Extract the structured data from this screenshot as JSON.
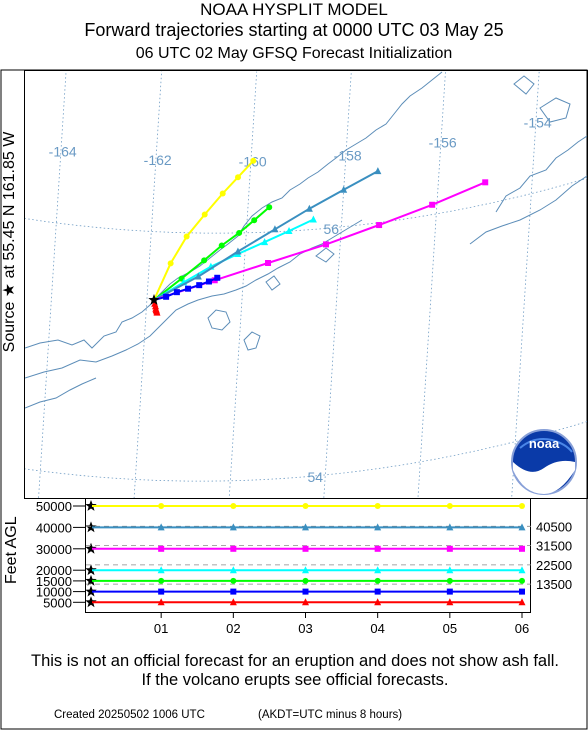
{
  "header": {
    "title_line1": "NOAA HYSPLIT MODEL",
    "title_line2": "Forward trajectories starting at 0000 UTC 03 May 25",
    "title_line3": "06 UTC 02 May    GFSQ  Forecast Initialization"
  },
  "map": {
    "source_label": "Source ★ at   55.45 N  161.85 W",
    "source": {
      "lat": 55.45,
      "lon": -161.85
    },
    "lon_labels": [
      {
        "text": "-164",
        "lon": -164
      },
      {
        "text": "-162",
        "lon": -162
      },
      {
        "text": "-160",
        "lon": -160
      },
      {
        "text": "-158",
        "lon": -158
      },
      {
        "text": "-156",
        "lon": -156
      },
      {
        "text": "-154",
        "lon": -154
      }
    ],
    "lat_labels": [
      {
        "text": "56",
        "lat": 56
      },
      {
        "text": "54",
        "lat": 54
      }
    ],
    "colors": {
      "grid": "#6f9cc4",
      "coast": "#5c8db8",
      "label": "#6a9ac4"
    },
    "logo_text": "noaa",
    "trajectories": [
      {
        "color": "#ffff00",
        "marker": "circle",
        "points": [
          [
            -161.85,
            55.45
          ],
          [
            -161.55,
            55.75
          ],
          [
            -161.25,
            55.97
          ],
          [
            -160.9,
            56.15
          ],
          [
            -160.55,
            56.32
          ],
          [
            -160.25,
            56.45
          ],
          [
            -159.95,
            56.58
          ]
        ]
      },
      {
        "color": "#00ff00",
        "marker": "circle",
        "points": [
          [
            -161.85,
            55.45
          ],
          [
            -161.3,
            55.63
          ],
          [
            -160.85,
            55.78
          ],
          [
            -160.5,
            55.9
          ],
          [
            -160.15,
            56.0
          ],
          [
            -159.85,
            56.1
          ],
          [
            -159.55,
            56.2
          ]
        ]
      },
      {
        "color": "#00ffff",
        "marker": "triangle",
        "points": [
          [
            -161.85,
            55.45
          ],
          [
            -161.25,
            55.6
          ],
          [
            -160.7,
            55.73
          ],
          [
            -160.15,
            55.83
          ],
          [
            -159.6,
            55.92
          ],
          [
            -159.1,
            56.0
          ],
          [
            -158.6,
            56.08
          ]
        ]
      },
      {
        "color": "#3a8fc0",
        "marker": "triangle",
        "points": [
          [
            -161.85,
            55.45
          ],
          [
            -160.95,
            55.65
          ],
          [
            -160.15,
            55.85
          ],
          [
            -159.4,
            56.02
          ],
          [
            -158.7,
            56.17
          ],
          [
            -158.0,
            56.3
          ],
          [
            -157.3,
            56.42
          ]
        ]
      },
      {
        "color": "#ff00ff",
        "marker": "square",
        "points": [
          [
            -161.85,
            55.45
          ],
          [
            -160.6,
            55.62
          ],
          [
            -159.5,
            55.75
          ],
          [
            -158.3,
            55.87
          ],
          [
            -157.2,
            55.98
          ],
          [
            -156.1,
            56.08
          ],
          [
            -155.0,
            56.18
          ]
        ]
      },
      {
        "color": "#0000ff",
        "marker": "square",
        "points": [
          [
            -161.85,
            55.45
          ],
          [
            -161.6,
            55.48
          ],
          [
            -161.38,
            55.52
          ],
          [
            -161.15,
            55.55
          ],
          [
            -160.92,
            55.58
          ],
          [
            -160.72,
            55.61
          ],
          [
            -160.55,
            55.64
          ]
        ]
      },
      {
        "color": "#ff0000",
        "marker": "triangle",
        "points": [
          [
            -161.85,
            55.45
          ],
          [
            -161.83,
            55.42
          ],
          [
            -161.81,
            55.4
          ],
          [
            -161.8,
            55.38
          ],
          [
            -161.79,
            55.37
          ],
          [
            -161.78,
            55.36
          ],
          [
            -161.77,
            55.35
          ]
        ]
      }
    ]
  },
  "altitude": {
    "axis_label": "Feet AGL",
    "y_ticks": [
      {
        "text": "50000",
        "ft": 50000
      },
      {
        "text": "40000",
        "ft": 40000
      },
      {
        "text": "30000",
        "ft": 30000
      },
      {
        "text": "20000",
        "ft": 20000
      },
      {
        "text": "15000",
        "ft": 15000
      },
      {
        "text": "10000",
        "ft": 10000
      },
      {
        "text": "5000",
        "ft": 5000
      }
    ],
    "right_labels": [
      {
        "text": "40500",
        "ft": 40500
      },
      {
        "text": "31500",
        "ft": 31500
      },
      {
        "text": "22500",
        "ft": 22500
      },
      {
        "text": "13500",
        "ft": 13500
      }
    ],
    "x_ticks": [
      "01",
      "02",
      "03",
      "04",
      "05",
      "06"
    ],
    "series": [
      {
        "color": "#ffff00",
        "marker": "circle",
        "ft": 50000
      },
      {
        "color": "#3a8fc0",
        "marker": "triangle",
        "ft": 40000
      },
      {
        "color": "#ff00ff",
        "marker": "square",
        "ft": 30000
      },
      {
        "color": "#00ffff",
        "marker": "triangle",
        "ft": 20000
      },
      {
        "color": "#00ff00",
        "marker": "circle",
        "ft": 15000
      },
      {
        "color": "#0000ff",
        "marker": "square",
        "ft": 10000
      },
      {
        "color": "#ff0000",
        "marker": "triangle",
        "ft": 5000
      }
    ]
  },
  "disclaimer": "This is not an official forecast for an eruption and does not show ash fall. If the volcano erupts see official forecasts.",
  "footer": {
    "created": "Created 20250502 1006 UTC",
    "akdt_note": "(AKDT=UTC minus 8 hours)"
  }
}
